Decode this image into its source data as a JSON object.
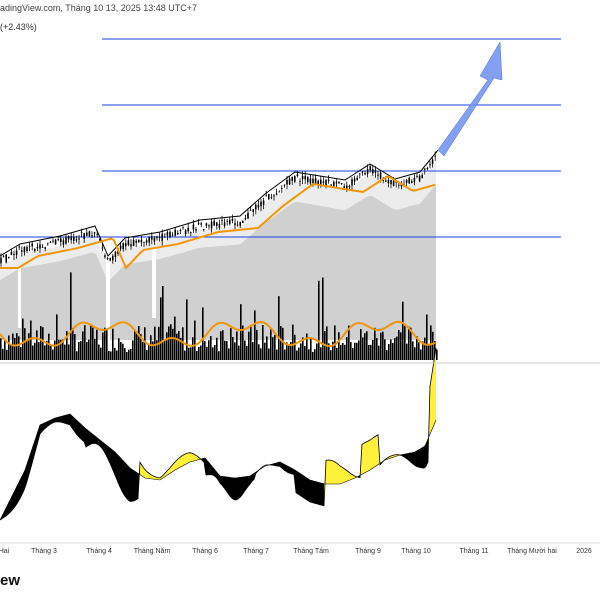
{
  "header": {
    "source_line": "adingView.com, Tháng 10 13, 2025 13:48 UTC+7",
    "change_text": "(+2.43%)",
    "brand_fragment": "ew"
  },
  "colors": {
    "background": "#ffffff",
    "candle": "#000000",
    "moving_average": "#f0960a",
    "volume_bars": "#000000",
    "volume_ma": "#f0960a",
    "shaded_area": "#d0d0d0",
    "level_lines": "#1e40e0",
    "arrow": "#6f8ff0",
    "oscillator_positive": "#fff13a",
    "oscillator_negative": "#000000"
  },
  "chart_data": [
    {
      "type": "line",
      "panel": "price",
      "title": "",
      "price_axis_labels": "not visible (cropped)",
      "series": [
        {
          "role": "price candles (closes, approx. relative units 0-100)",
          "x": [
            "Tháng Hai",
            "Tháng 3",
            "Tháng 4",
            "Tháng Năm",
            "Tháng 6",
            "Tháng 7",
            "Tháng Tám",
            "Tháng 9",
            "Tháng 10"
          ],
          "values": [
            12,
            22,
            25,
            23,
            32,
            44,
            54,
            57,
            65
          ]
        },
        {
          "role": "moving average (orange)",
          "x": [
            "Tháng Hai",
            "Tháng 3",
            "Tháng 4",
            "Tháng Năm",
            "Tháng 6",
            "Tháng 7",
            "Tháng Tám",
            "Tháng 9",
            "Tháng 10"
          ],
          "values": [
            10,
            19,
            22,
            21,
            28,
            35,
            48,
            52,
            58
          ]
        }
      ],
      "horizontal_levels": 4,
      "projection_arrow": "up, from the last candle into Tháng 11",
      "grid": false
    },
    {
      "type": "bar",
      "panel": "volume",
      "series": [
        {
          "role": "volume bars (black)",
          "trend": "uneven"
        },
        {
          "role": "volume moving average (orange)",
          "trend": "oscillating"
        }
      ]
    },
    {
      "type": "area",
      "panel": "oscillator",
      "series": [
        {
          "role": "oscillator (yellow above / black below the signal line)",
          "x": [
            "Tháng Hai",
            "Tháng 3",
            "Tháng 4",
            "Tháng Năm",
            "Tháng 6",
            "Tháng 7",
            "Tháng Tám",
            "Tháng 9",
            "Tháng 10"
          ],
          "values": [
            -20,
            5,
            8,
            -15,
            -12,
            0,
            -5,
            10,
            40
          ]
        }
      ]
    }
  ],
  "x_axis": {
    "ticks": [
      "Hai",
      "Tháng 3",
      "Tháng 4",
      "Tháng Năm",
      "Tháng 6",
      "Tháng 7",
      "Tháng Tám",
      "Tháng 9",
      "Tháng 10",
      "Tháng 11",
      "Tháng Mười hai",
      "2026"
    ]
  }
}
